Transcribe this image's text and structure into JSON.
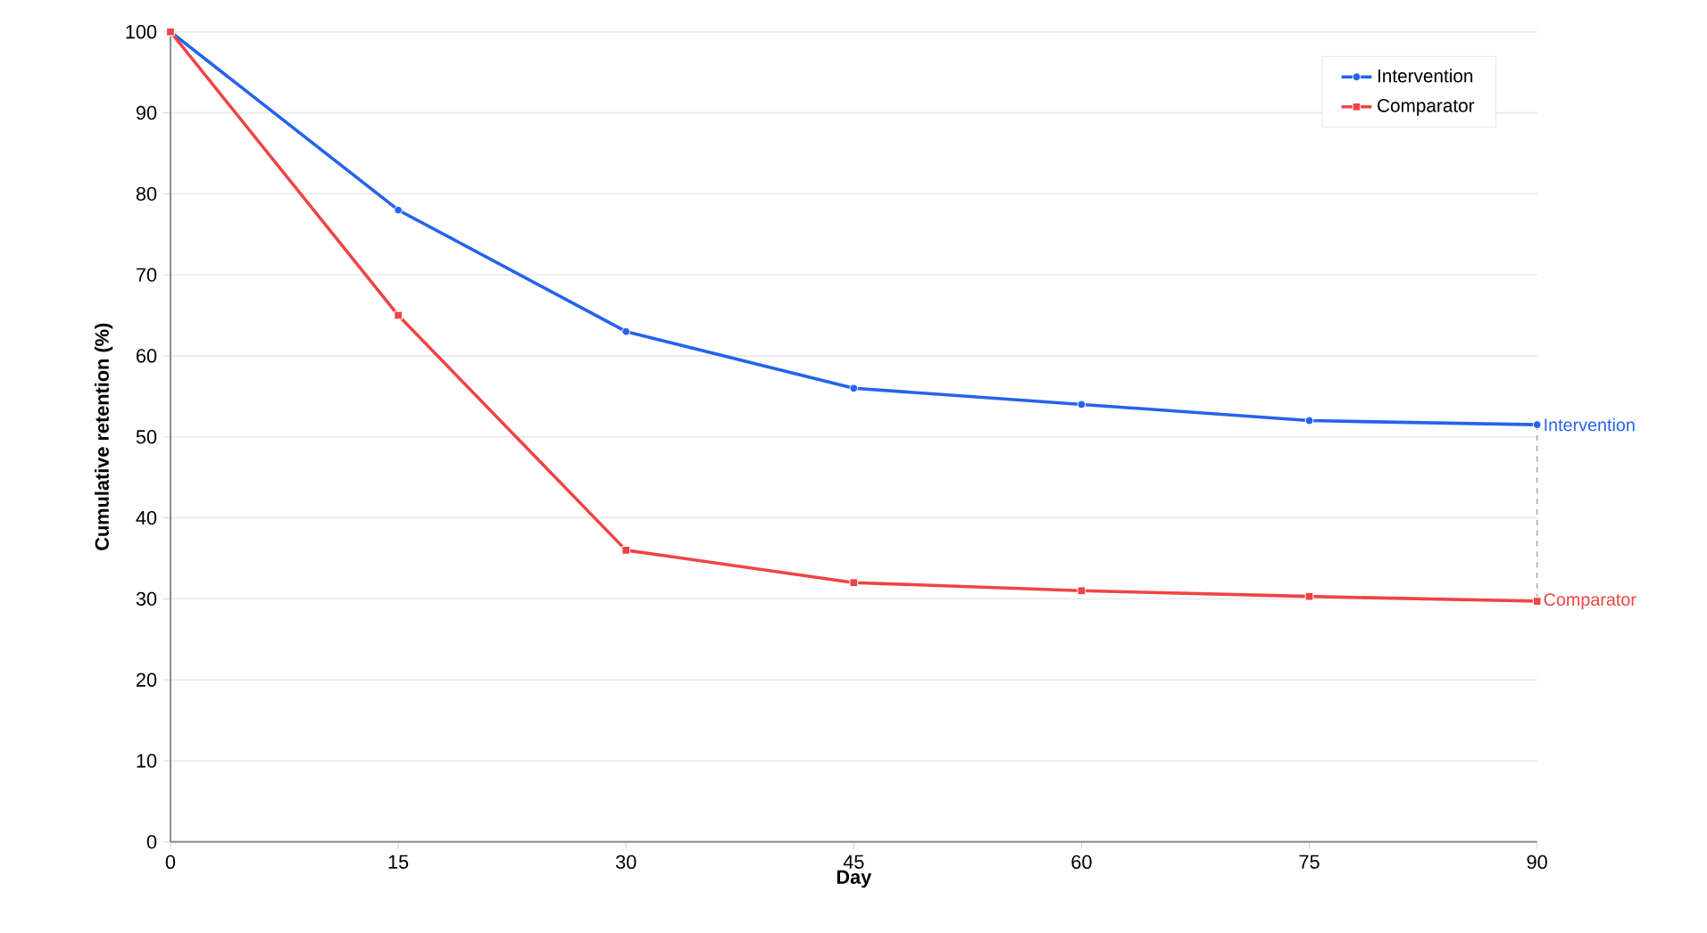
{
  "chart_data": {
    "type": "line",
    "xlabel": "Day",
    "ylabel": "Cumulative retention (%)",
    "x": [
      0,
      15,
      30,
      45,
      60,
      75,
      90
    ],
    "series": [
      {
        "name": "Intervention",
        "color": "#2563eb",
        "marker": "circle",
        "values": [
          100,
          78,
          63,
          56,
          54,
          52,
          51.5
        ]
      },
      {
        "name": "Comparator",
        "color": "#ef4444",
        "marker": "square",
        "values": [
          100,
          65,
          36,
          32,
          31,
          30.3,
          29.7
        ]
      },
      {
        "color": "#aaaaaa",
        "x": [
          90,
          90
        ],
        "values": [
          51.5,
          29.7
        ],
        "line_style": "dashed",
        "marker": "none"
      }
    ],
    "xlim": [
      0,
      90
    ],
    "xticks": [
      0,
      15,
      30,
      45,
      60,
      75,
      90
    ],
    "ylim": [
      0,
      100
    ],
    "yticks": [
      0,
      10,
      20,
      30,
      40,
      50,
      60,
      70,
      80,
      90,
      100
    ],
    "grid": "y",
    "legend": "top right"
  }
}
